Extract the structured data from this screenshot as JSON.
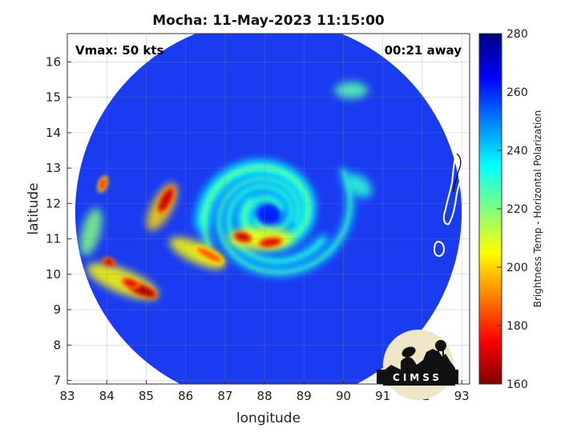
{
  "chart_data": {
    "type": "heatmap",
    "title": "Mocha: 11-May-2023 11:15:00",
    "xlabel": "longitude",
    "ylabel": "latitude",
    "xlim": [
      83,
      93.2
    ],
    "ylim": [
      6.9,
      16.8
    ],
    "xticks": [
      "83",
      "84",
      "85",
      "86",
      "87",
      "88",
      "89",
      "90",
      "91",
      "92",
      "93"
    ],
    "yticks": [
      "7",
      "8",
      "9",
      "10",
      "11",
      "12",
      "13",
      "14",
      "15",
      "16"
    ],
    "grid": true,
    "annotations": {
      "vmax": "Vmax: 50 kts",
      "time_offset": "00:21 away"
    },
    "storm_center": {
      "lon": 88.1,
      "lat": 11.7
    },
    "swath": {
      "center_lon": 88.1,
      "center_lat": 11.75,
      "radius_deg": 4.9
    },
    "colorbar": {
      "label": "Brightness Temp - Horizontal Polarization",
      "min": 160,
      "max": 280,
      "ticks": [
        "160",
        "180",
        "200",
        "220",
        "240",
        "260",
        "280"
      ],
      "colormap": "jet"
    },
    "cold_features": [
      {
        "lon": 85.5,
        "lat": 12.1,
        "len": 0.6,
        "wid": 0.22,
        "angle": 62,
        "temp": 168
      },
      {
        "lon": 84.9,
        "lat": 9.55,
        "len": 0.65,
        "wid": 0.22,
        "angle": -22,
        "temp": 165
      },
      {
        "lon": 84.6,
        "lat": 9.75,
        "len": 0.35,
        "wid": 0.16,
        "angle": -20,
        "temp": 172
      },
      {
        "lon": 84.05,
        "lat": 10.35,
        "len": 0.2,
        "wid": 0.14,
        "angle": -20,
        "temp": 168
      },
      {
        "lon": 83.9,
        "lat": 12.55,
        "len": 0.3,
        "wid": 0.14,
        "angle": 70,
        "temp": 180
      },
      {
        "lon": 87.45,
        "lat": 11.05,
        "len": 0.35,
        "wid": 0.18,
        "angle": -15,
        "temp": 168
      },
      {
        "lon": 88.15,
        "lat": 10.9,
        "len": 0.5,
        "wid": 0.18,
        "angle": 8,
        "temp": 172
      },
      {
        "lon": 86.6,
        "lat": 10.55,
        "len": 0.7,
        "wid": 0.2,
        "angle": -28,
        "temp": 185
      }
    ],
    "warm_bands": [
      {
        "lon": 84.4,
        "lat": 9.8,
        "len": 1.7,
        "wid": 0.45,
        "angle": -22,
        "temp": 205
      },
      {
        "lon": 85.4,
        "lat": 11.9,
        "len": 1.1,
        "wid": 0.35,
        "angle": 62,
        "temp": 200
      },
      {
        "lon": 86.3,
        "lat": 10.6,
        "len": 1.3,
        "wid": 0.35,
        "angle": -25,
        "temp": 205
      },
      {
        "lon": 87.9,
        "lat": 11.0,
        "len": 1.4,
        "wid": 0.4,
        "angle": 0,
        "temp": 205
      },
      {
        "lon": 83.6,
        "lat": 11.2,
        "len": 1.0,
        "wid": 0.3,
        "angle": 75,
        "temp": 220
      },
      {
        "lon": 90.2,
        "lat": 15.2,
        "len": 0.6,
        "wid": 0.25,
        "angle": 0,
        "temp": 225
      },
      {
        "lon": 90.4,
        "lat": 12.5,
        "len": 0.5,
        "wid": 0.3,
        "angle": -40,
        "temp": 230
      }
    ]
  }
}
